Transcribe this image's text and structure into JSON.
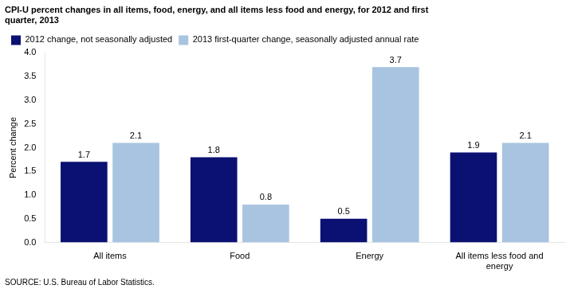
{
  "chart_data": {
    "type": "bar",
    "title": [
      "CPI-U percent changes in all items, food, energy, and all items less food and energy, for 2012 and first",
      "quarter, 2013"
    ],
    "y_label": "Percent change",
    "source": "SOURCE: U.S. Bureau of Labor Statistics.",
    "categories": [
      "All items",
      "Food",
      "Energy",
      "All items less food and\nenergy"
    ],
    "series": [
      {
        "name": "2012 change, not seasonally adjusted",
        "color": "#0A1172",
        "values": [
          1.7,
          1.8,
          0.5,
          1.9
        ]
      },
      {
        "name": "2013 first-quarter change, seasonally adjusted annual rate",
        "color": "#A8C4E0",
        "values": [
          2.1,
          0.8,
          3.7,
          2.1
        ]
      }
    ],
    "ylim": [
      0.0,
      4.0
    ],
    "yticks": [
      {
        "value": 0,
        "label": "0.0"
      },
      0.5,
      {
        "value": 1,
        "label": "1.0"
      },
      1.5,
      {
        "value": 2,
        "label": "2.0"
      },
      2.5,
      {
        "value": 3,
        "label": "3.0"
      },
      3.5,
      {
        "value": 4,
        "label": "4.0"
      }
    ],
    "grid": false,
    "legend": "upper left",
    "data_labels": true
  }
}
